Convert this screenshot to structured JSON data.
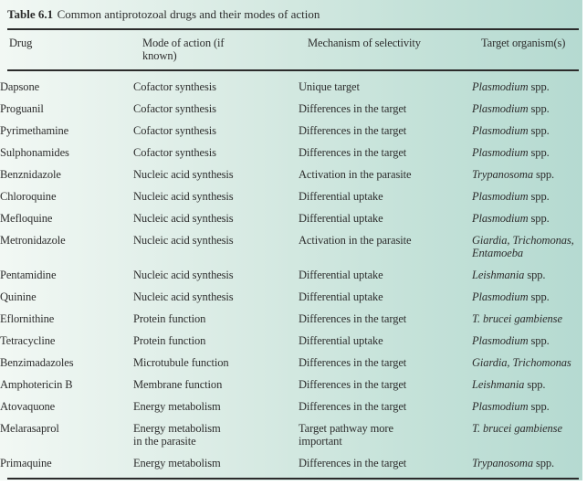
{
  "title": {
    "label": "Table 6.1",
    "text": "Common antiprotozoal drugs and their modes of action"
  },
  "header": {
    "drug": "Drug",
    "mode": "Mode of action (if\nknown)",
    "mechanism": "Mechanism of selectivity",
    "target": "Target organism(s)"
  },
  "rows": [
    {
      "drug": "Dapsone",
      "mode": "Cofactor synthesis",
      "mechanism": "Unique target",
      "target_italic": "Plasmodium",
      "target_roman": " spp."
    },
    {
      "drug": "Proguanil",
      "mode": "Cofactor synthesis",
      "mechanism": "Differences in the target",
      "target_italic": "Plasmodium",
      "target_roman": " spp."
    },
    {
      "drug": "Pyrimethamine",
      "mode": "Cofactor synthesis",
      "mechanism": "Differences in the target",
      "target_italic": "Plasmodium",
      "target_roman": " spp."
    },
    {
      "drug": "Sulphonamides",
      "mode": "Cofactor synthesis",
      "mechanism": "Differences in the target",
      "target_italic": "Plasmodium",
      "target_roman": " spp."
    },
    {
      "drug": "Benznidazole",
      "mode": "Nucleic acid synthesis",
      "mechanism": "Activation in the parasite",
      "target_italic": "Trypanosoma",
      "target_roman": " spp."
    },
    {
      "drug": "Chloroquine",
      "mode": "Nucleic acid synthesis",
      "mechanism": "Differential uptake",
      "target_italic": "Plasmodium",
      "target_roman": " spp."
    },
    {
      "drug": "Mefloquine",
      "mode": "Nucleic acid synthesis",
      "mechanism": "Differential uptake",
      "target_italic": "Plasmodium",
      "target_roman": " spp."
    },
    {
      "drug": "Metronidazole",
      "mode": "Nucleic acid synthesis",
      "mechanism": "Activation in the parasite",
      "target_italic": "Giardia, Trichomonas,\nEntamoeba",
      "target_roman": ""
    },
    {
      "drug": "Pentamidine",
      "mode": "Nucleic acid synthesis",
      "mechanism": "Differential uptake",
      "target_italic": "Leishmania",
      "target_roman": " spp."
    },
    {
      "drug": "Quinine",
      "mode": "Nucleic acid synthesis",
      "mechanism": "Differential uptake",
      "target_italic": "Plasmodium",
      "target_roman": " spp."
    },
    {
      "drug": "Eflornithine",
      "mode": "Protein function",
      "mechanism": "Differences in the target",
      "target_italic": "T. brucei gambiense",
      "target_roman": ""
    },
    {
      "drug": "Tetracycline",
      "mode": "Protein function",
      "mechanism": "Differential uptake",
      "target_italic": "Plasmodium",
      "target_roman": " spp."
    },
    {
      "drug": "Benzimadazoles",
      "mode": "Microtubule function",
      "mechanism": "Differences in the target",
      "target_italic": "Giardia, Trichomonas",
      "target_roman": ""
    },
    {
      "drug": "Amphotericin B",
      "mode": "Membrane function",
      "mechanism": "Differences in the target",
      "target_italic": "Leishmania",
      "target_roman": " spp."
    },
    {
      "drug": "Atovaquone",
      "mode": "Energy metabolism",
      "mechanism": "Differences in the target",
      "target_italic": "Plasmodium",
      "target_roman": " spp."
    },
    {
      "drug": "Melarasaprol",
      "mode": "Energy metabolism\nin the parasite",
      "mechanism": "Target pathway more\nimportant",
      "target_italic": "T. brucei gambiense",
      "target_roman": ""
    },
    {
      "drug": "Primaquine",
      "mode": "Energy metabolism",
      "mechanism": "Differences in the target",
      "target_italic": "Trypanosoma",
      "target_roman": " spp."
    }
  ],
  "colors": {
    "panel_gradient_left": "#f2f8f4",
    "panel_gradient_right": "#b5dad1",
    "rule": "#2b2b2b",
    "text": "#2d2d2d",
    "page_background": "#ffffff"
  }
}
